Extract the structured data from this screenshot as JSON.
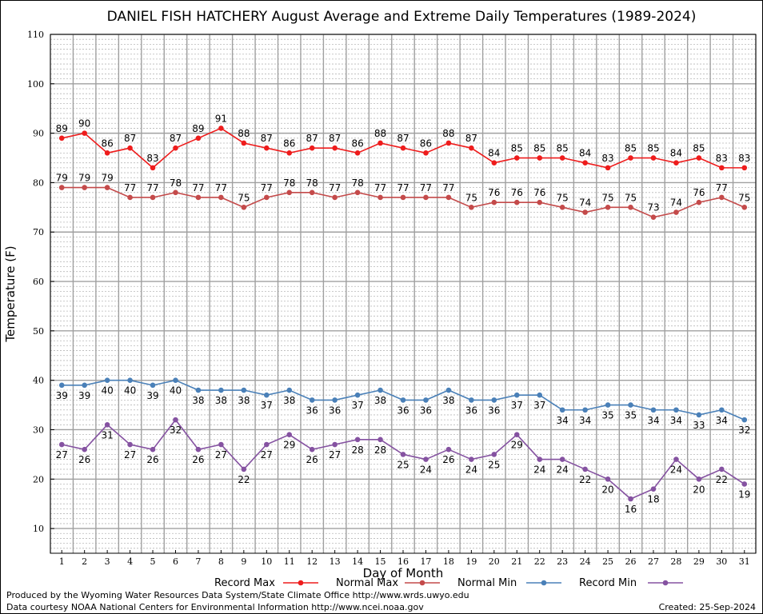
{
  "chart_data": {
    "type": "line",
    "title": "DANIEL FISH HATCHERY August Average and Extreme Daily Temperatures (1989-2024)",
    "xlabel": "Day of Month",
    "ylabel": "Temperature (F)",
    "x": [
      1,
      2,
      3,
      4,
      5,
      6,
      7,
      8,
      9,
      10,
      11,
      12,
      13,
      14,
      15,
      16,
      17,
      18,
      19,
      20,
      21,
      22,
      23,
      24,
      25,
      26,
      27,
      28,
      29,
      30,
      31
    ],
    "xlim": [
      0.5,
      31.5
    ],
    "ylim": [
      5,
      110
    ],
    "yticks": [
      10,
      20,
      30,
      40,
      50,
      60,
      70,
      80,
      90,
      100,
      110
    ],
    "grid": true,
    "legend_position": "bottom",
    "series": [
      {
        "name": "Record Max",
        "color": "#ee1c1c",
        "label_pos": "above",
        "values": [
          89,
          90,
          86,
          87,
          83,
          87,
          89,
          91,
          88,
          87,
          86,
          87,
          87,
          86,
          88,
          87,
          86,
          88,
          87,
          84,
          85,
          85,
          85,
          84,
          83,
          85,
          85,
          84,
          85,
          83,
          83
        ]
      },
      {
        "name": "Normal Max",
        "color": "#c44a4a",
        "label_pos": "above",
        "values": [
          79,
          79,
          79,
          77,
          77,
          78,
          77,
          77,
          75,
          77,
          78,
          78,
          77,
          78,
          77,
          77,
          77,
          77,
          75,
          76,
          76,
          76,
          75,
          74,
          75,
          75,
          73,
          74,
          76,
          77,
          75
        ]
      },
      {
        "name": "Normal Min",
        "color": "#4a80b8",
        "label_pos": "below",
        "values": [
          39,
          39,
          40,
          40,
          39,
          40,
          38,
          38,
          38,
          37,
          38,
          36,
          36,
          37,
          38,
          36,
          36,
          38,
          36,
          36,
          37,
          37,
          34,
          34,
          35,
          35,
          34,
          34,
          33,
          34,
          32
        ]
      },
      {
        "name": "Record Min",
        "color": "#8552a1",
        "label_pos": "below",
        "values": [
          27,
          26,
          31,
          27,
          26,
          32,
          26,
          27,
          22,
          27,
          29,
          26,
          27,
          28,
          28,
          25,
          24,
          26,
          24,
          25,
          29,
          24,
          24,
          22,
          20,
          16,
          18,
          24,
          20,
          22,
          19
        ]
      }
    ]
  },
  "footer": {
    "line1": "Produced by the Wyoming Water Resources Data System/State Climate Office http://www.wrds.uwyo.edu",
    "line2": "Data courtesy NOAA National Centers for Environmental Information http://www.ncei.noaa.gov",
    "created": "Created:  25-Sep-2024"
  }
}
